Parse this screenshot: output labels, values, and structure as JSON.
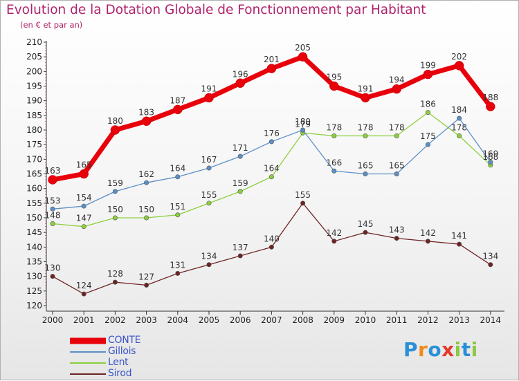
{
  "title": "Evolution de la Dotation Globale de Fonctionnement par Habitant",
  "subtitle": "(en € et par an)",
  "logo": {
    "text": "Proxiti",
    "colors": [
      "#2a8fd8",
      "#f08a1c",
      "#2a8fd8",
      "#e23a2a",
      "#8dc63f",
      "#2a8fd8",
      "#8dc63f"
    ]
  },
  "chart_data": {
    "type": "line",
    "x": [
      "2000",
      "2001",
      "2002",
      "2003",
      "2004",
      "2005",
      "2006",
      "2007",
      "2008",
      "2009",
      "2010",
      "2011",
      "2012",
      "2013",
      "2014"
    ],
    "ylim": [
      120,
      210
    ],
    "yticks": [
      120,
      125,
      130,
      135,
      140,
      145,
      150,
      155,
      160,
      165,
      170,
      175,
      180,
      185,
      190,
      195,
      200,
      205,
      210
    ],
    "grid": false,
    "legend_position": "bottom-left",
    "series": [
      {
        "name": "CONTE",
        "color": "#e8000b",
        "values": [
          163,
          165,
          180,
          183,
          187,
          191,
          196,
          201,
          205,
          195,
          191,
          194,
          199,
          202,
          188
        ]
      },
      {
        "name": "Gillois",
        "color": "#5b8fc7",
        "values": [
          153,
          154,
          159,
          162,
          164,
          167,
          171,
          176,
          180,
          166,
          165,
          165,
          175,
          184,
          169
        ]
      },
      {
        "name": "Lent",
        "color": "#8ccf3c",
        "values": [
          148,
          147,
          150,
          150,
          151,
          155,
          159,
          164,
          179,
          178,
          178,
          178,
          186,
          178,
          168
        ]
      },
      {
        "name": "Sirod",
        "color": "#6e2323",
        "values": [
          130,
          124,
          128,
          127,
          131,
          134,
          137,
          140,
          155,
          142,
          145,
          143,
          142,
          141,
          134
        ]
      }
    ]
  }
}
